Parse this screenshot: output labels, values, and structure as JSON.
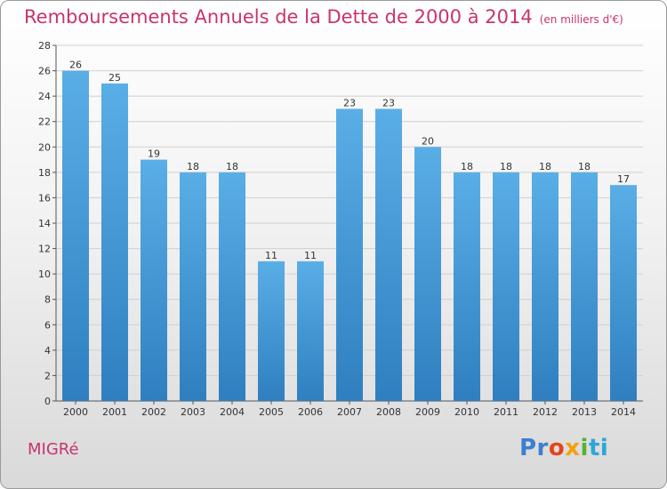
{
  "chart_data": {
    "type": "bar",
    "title": "Remboursements Annuels de la Dette de 2000 à 2014",
    "subtitle": "(en milliers d'€)",
    "categories": [
      "2000",
      "2001",
      "2002",
      "2003",
      "2004",
      "2005",
      "2006",
      "2007",
      "2008",
      "2009",
      "2010",
      "2011",
      "2012",
      "2013",
      "2014"
    ],
    "values": [
      26,
      25,
      19,
      18,
      18,
      11,
      11,
      23,
      23,
      20,
      18,
      18,
      18,
      18,
      17
    ],
    "ylim": [
      0,
      28
    ],
    "yticks": [
      0,
      2,
      4,
      6,
      8,
      10,
      12,
      14,
      16,
      18,
      20,
      22,
      24,
      26,
      28
    ],
    "grid": true,
    "bar_color_top": "#5aaee6",
    "bar_color_bottom": "#2f7fc0"
  },
  "footer": {
    "commune": "MIGRé",
    "logo_parts": [
      "Pr",
      "o",
      "x",
      "i",
      "ti"
    ]
  },
  "colors": {
    "title": "#c8346e"
  }
}
